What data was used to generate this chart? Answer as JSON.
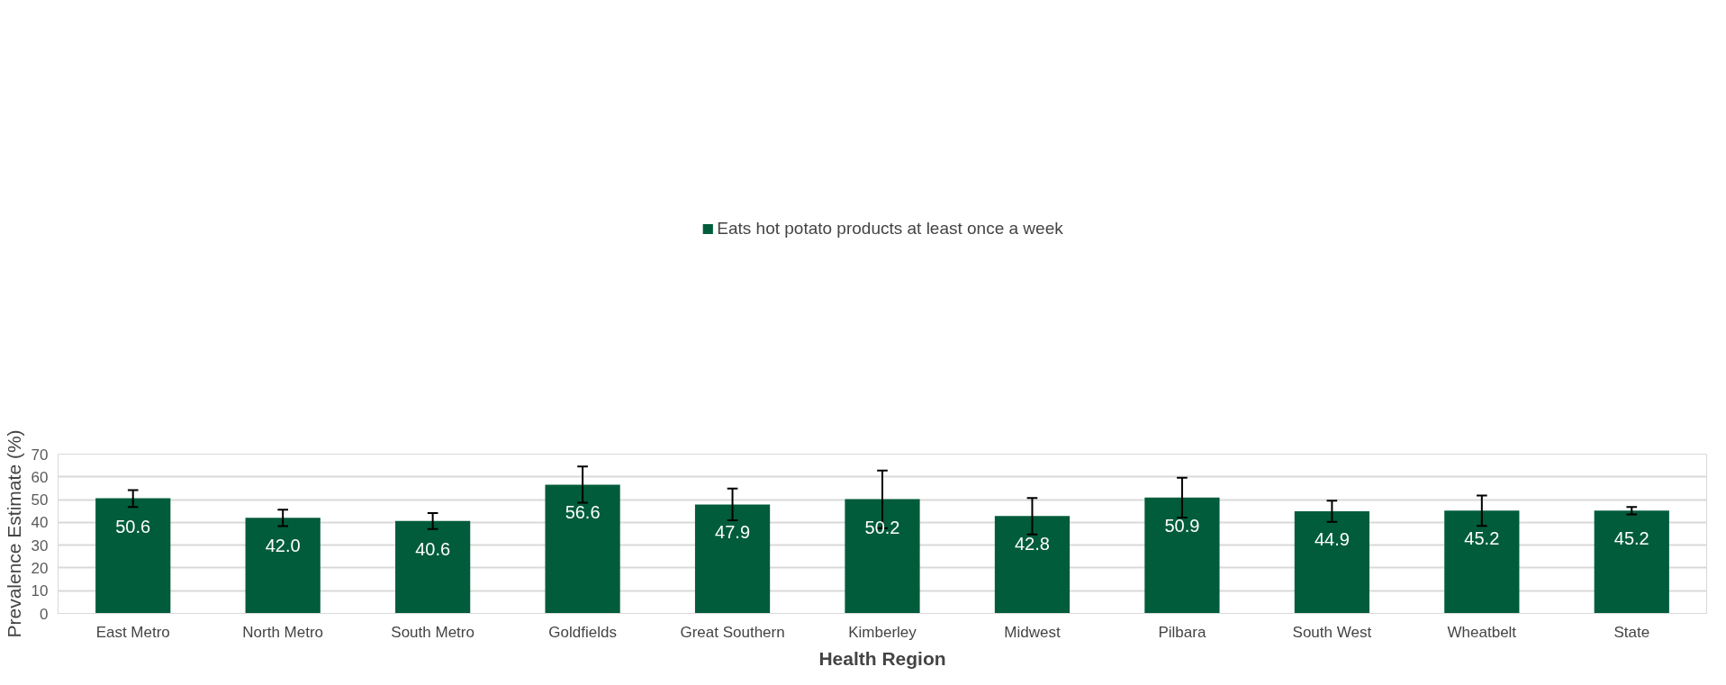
{
  "chart_data": {
    "type": "bar",
    "xlabel": "Health Region",
    "ylabel": "Prevalence Estimate (%)",
    "categories": [
      "East Metro",
      "North Metro",
      "South Metro",
      "Goldfields",
      "Great Southern",
      "Kimberley",
      "Midwest",
      "Pilbara",
      "South West",
      "Wheatbelt",
      "State"
    ],
    "series": [
      {
        "name": "Eats hot potato products at least once a week",
        "color": "#005c3b",
        "values": [
          50.6,
          42.0,
          40.6,
          56.6,
          47.9,
          50.2,
          42.8,
          50.9,
          44.9,
          45.2,
          45.2
        ],
        "errors": [
          [
            46.8,
            54.2
          ],
          [
            38.4,
            45.6
          ],
          [
            37.1,
            44.1
          ],
          [
            48.6,
            64.6
          ],
          [
            40.9,
            54.9
          ],
          [
            37.5,
            62.8
          ],
          [
            34.7,
            50.7
          ],
          [
            42.1,
            59.6
          ],
          [
            40.2,
            49.5
          ],
          [
            38.5,
            51.8
          ],
          [
            43.5,
            46.8
          ]
        ],
        "value_labels": [
          "50.6",
          "42.0",
          "40.6",
          "56.6",
          "47.9",
          "50.2",
          "42.8",
          "50.9",
          "44.9",
          "45.2",
          "45.2"
        ]
      }
    ],
    "ylim": [
      0,
      70
    ],
    "yticks": [
      0,
      10,
      20,
      30,
      40,
      50,
      60,
      70
    ],
    "grid": "y",
    "legend": "top"
  }
}
